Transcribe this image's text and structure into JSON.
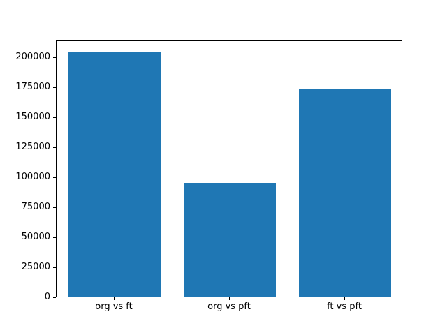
{
  "colors": {
    "bar": "#1f77b4",
    "axis": "#000000",
    "background": "#ffffff"
  },
  "chart_data": {
    "type": "bar",
    "categories": [
      "org vs ft",
      "org vs pft",
      "ft vs pft"
    ],
    "values": [
      204000,
      95000,
      173000
    ],
    "title": "",
    "xlabel": "",
    "ylabel": "",
    "ylim": [
      0,
      214200
    ],
    "yticks": [
      0,
      25000,
      50000,
      75000,
      100000,
      125000,
      150000,
      175000,
      200000
    ],
    "bar_width_fraction": 0.8,
    "grid": false,
    "legend": "none"
  }
}
